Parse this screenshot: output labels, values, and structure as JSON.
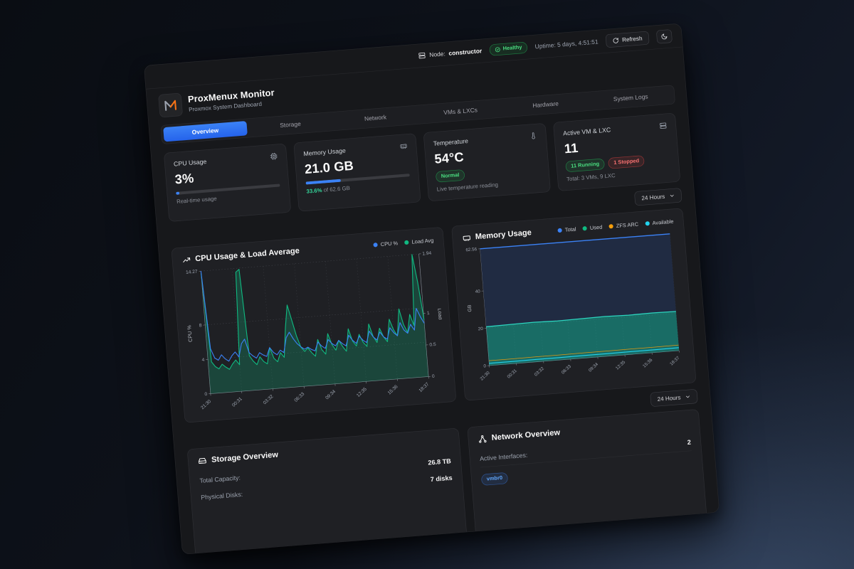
{
  "topbar": {
    "node_label": "Node:",
    "node_name": "constructor",
    "health_label": "Healthy",
    "uptime_label": "Uptime: 5 days, 4:51:51",
    "refresh_label": "Refresh"
  },
  "header": {
    "title": "ProxMenux Monitor",
    "subtitle": "Proxmox System Dashboard"
  },
  "tabs": [
    "Overview",
    "Storage",
    "Network",
    "VMs & LXCs",
    "Hardware",
    "System Logs"
  ],
  "stat_cards": {
    "cpu": {
      "label": "CPU Usage",
      "value": "3%",
      "progress_pct": 3,
      "caption": "Real-time usage"
    },
    "memory": {
      "label": "Memory Usage",
      "value": "21.0 GB",
      "progress_pct": 33.6,
      "caption_highlight": "33.6%",
      "caption_rest": " of 62.6 GB"
    },
    "temperature": {
      "label": "Temperature",
      "value": "54°C",
      "badge": "Normal",
      "caption": "Live temperature reading"
    },
    "vms": {
      "label": "Active VM & LXC",
      "value": "11",
      "badge_running": "11 Running",
      "badge_stopped": "1 Stopped",
      "caption": "Total: 3 VMs, 9 LXC"
    }
  },
  "period_label": "24 Hours",
  "chart_data": [
    {
      "type": "line",
      "title": "CPU Usage & Load Average",
      "x_labels": [
        "21:30",
        "00:31",
        "03:32",
        "06:33",
        "09:34",
        "12:35",
        "15:36",
        "18:37"
      ],
      "left_axis": {
        "label": "CPU %",
        "ticks": [
          0,
          4,
          8
        ],
        "max": 14.27
      },
      "right_axis": {
        "label": "Load",
        "ticks": [
          0,
          0.5,
          1
        ],
        "max": 1.94
      },
      "grid": true,
      "legend_position": "top-right",
      "series": [
        {
          "name": "CPU %",
          "color": "#3b82f6",
          "axis": "left",
          "values": [
            14.27,
            5.2,
            4.1,
            3.8,
            4.4,
            3.9,
            3.6,
            4.2,
            4.6,
            4.0,
            5.5,
            6.0,
            4.4,
            4.0,
            3.7,
            4.3,
            4.0,
            3.8,
            4.8,
            4.2,
            3.9,
            4.4,
            4.1,
            5.8,
            6.4,
            5.6,
            5.0,
            4.6,
            4.3,
            4.5,
            4.2,
            4.0,
            5.0,
            4.5,
            4.2,
            5.2,
            4.7,
            4.4,
            5.0,
            4.6,
            4.3,
            5.5,
            4.9,
            4.5,
            5.3,
            4.8,
            4.5,
            5.8,
            5.1,
            4.7,
            5.6,
            5.0,
            4.7,
            6.0,
            5.4,
            5.0,
            6.5,
            5.6,
            5.2,
            6.2,
            5.5,
            8.0,
            7.0,
            6.2
          ]
        },
        {
          "name": "Load Avg",
          "color": "#10b981",
          "axis": "right",
          "values": [
            1.9,
            0.5,
            0.42,
            0.38,
            0.45,
            0.4,
            0.36,
            0.44,
            0.5,
            0.42,
            1.88,
            1.92,
            0.55,
            0.46,
            0.4,
            0.52,
            0.44,
            0.4,
            0.65,
            0.48,
            0.42,
            0.56,
            0.48,
            0.95,
            1.3,
            1.05,
            0.8,
            0.62,
            0.55,
            0.6,
            0.52,
            0.46,
            0.72,
            0.55,
            0.48,
            0.8,
            0.62,
            0.53,
            0.68,
            0.58,
            0.5,
            0.85,
            0.65,
            0.57,
            0.75,
            0.62,
            0.55,
            0.9,
            0.7,
            0.6,
            0.82,
            0.68,
            0.6,
            0.95,
            0.78,
            0.68,
            1.1,
            0.85,
            0.72,
            1.0,
            0.82,
            1.94,
            1.5,
            0.9
          ]
        }
      ]
    },
    {
      "type": "area",
      "title": "Memory Usage",
      "x_labels": [
        "21:30",
        "00:31",
        "03:32",
        "06:33",
        "09:34",
        "12:35",
        "15:36",
        "18:37"
      ],
      "left_axis": {
        "label": "GB",
        "ticks": [
          0,
          20,
          40
        ],
        "max": 62.56
      },
      "grid": true,
      "legend_position": "top",
      "series": [
        {
          "name": "Total",
          "color": "#3b82f6",
          "values": [
            62.56,
            62.56,
            62.56,
            62.56,
            62.56,
            62.56,
            62.56,
            62.56,
            62.56
          ]
        },
        {
          "name": "Used",
          "color": "#10b981",
          "values": [
            20.8,
            21.0,
            21.2,
            20.9,
            21.1,
            21.3,
            21.0,
            21.2,
            21.0
          ]
        },
        {
          "name": "ZFS ARC",
          "color": "#f59e0b",
          "values": [
            2.6,
            2.6,
            2.7,
            2.7,
            2.8,
            2.8,
            2.9,
            2.9,
            3.0
          ]
        },
        {
          "name": "Available",
          "color": "#22d3ee",
          "values": [
            1.2,
            1.2,
            1.3,
            1.3,
            1.4,
            1.4,
            1.5,
            1.5,
            1.6
          ]
        }
      ]
    }
  ],
  "storage_overview": {
    "title": "Storage Overview",
    "rows": [
      {
        "label": "Total Capacity:",
        "value": "26.8 TB"
      },
      {
        "label": "Physical Disks:",
        "value": "7 disks"
      }
    ]
  },
  "network_overview": {
    "title": "Network Overview",
    "rows": [
      {
        "label": "Active Interfaces:",
        "value": "2"
      }
    ],
    "interface_badge": "vmbr0"
  },
  "icons": [
    "server",
    "check-circle",
    "refresh",
    "moon",
    "cpu",
    "memory",
    "thermometer",
    "server-stack",
    "chevron-down",
    "trending-up",
    "hard-drive",
    "network"
  ],
  "colors": {
    "accent_blue": "#3b82f6",
    "green": "#22c55e",
    "teal": "#14b8a6",
    "cyan": "#22d3ee",
    "orange": "#f59e0b",
    "red": "#ef4444",
    "navy_fill": "#202b42"
  }
}
